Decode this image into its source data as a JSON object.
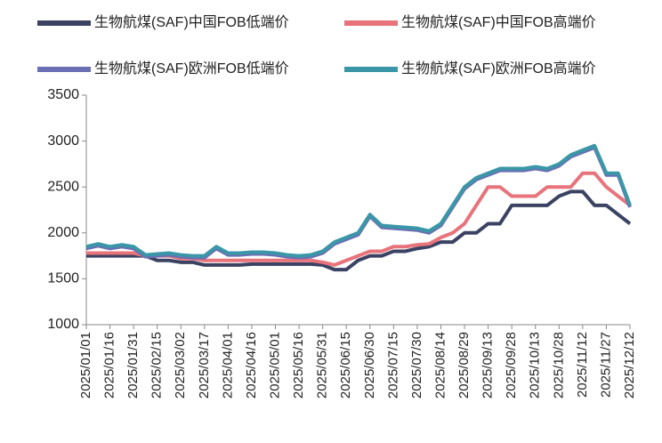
{
  "chart_data": {
    "type": "line",
    "categories": [
      "2025/01/01",
      null,
      "2025/01/16",
      null,
      "2025/01/31",
      null,
      "2025/02/15",
      null,
      "2025/03/02",
      null,
      "2025/03/17",
      null,
      "2025/04/01",
      null,
      "2025/04/16",
      null,
      "2025/05/01",
      null,
      "2025/05/16",
      null,
      "2025/05/31",
      null,
      "2025/06/15",
      null,
      "2025/06/30",
      null,
      "2025/07/15",
      null,
      "2025/07/30",
      null,
      "2025/08/14",
      null,
      "2025/08/29",
      null,
      "2025/09/13",
      null,
      "2025/09/28",
      null,
      "2025/10/13",
      null,
      "2025/10/28",
      null,
      "2025/11/12",
      null,
      "2025/11/27",
      null,
      "2025/12/12"
    ],
    "series": [
      {
        "name": "生物航煤(SAF)中国FOB低端价",
        "color": "#3b4262",
        "values": [
          1750,
          1750,
          1750,
          1750,
          1750,
          1750,
          1700,
          1700,
          1680,
          1680,
          1650,
          1650,
          1650,
          1650,
          1660,
          1660,
          1660,
          1660,
          1660,
          1660,
          1650,
          1600,
          1600,
          1700,
          1750,
          1750,
          1800,
          1800,
          1830,
          1850,
          1900,
          1900,
          2000,
          2000,
          2100,
          2100,
          2300,
          2300,
          2300,
          2300,
          2400,
          2450,
          2450,
          2300,
          2300,
          2200,
          2100
        ]
      },
      {
        "name": "生物航煤(SAF)中国FOB高端价",
        "color": "#e8737b",
        "values": [
          1780,
          1780,
          1780,
          1780,
          1780,
          1750,
          1750,
          1750,
          1720,
          1720,
          1700,
          1700,
          1700,
          1700,
          1700,
          1700,
          1700,
          1700,
          1700,
          1700,
          1680,
          1650,
          1700,
          1750,
          1800,
          1800,
          1850,
          1850,
          1870,
          1880,
          1950,
          2000,
          2100,
          2300,
          2500,
          2500,
          2400,
          2400,
          2400,
          2500,
          2500,
          2500,
          2650,
          2650,
          2500,
          2400,
          2300
        ]
      },
      {
        "name": "生物航煤(SAF)欧洲FOB低端价",
        "color": "#6b6fb3",
        "values": [
          1830,
          1860,
          1830,
          1850,
          1830,
          1740,
          1750,
          1760,
          1740,
          1730,
          1730,
          1830,
          1760,
          1760,
          1770,
          1770,
          1760,
          1740,
          1730,
          1740,
          1780,
          1880,
          1930,
          1980,
          2180,
          2060,
          2050,
          2040,
          2030,
          2000,
          2080,
          2280,
          2480,
          2580,
          2630,
          2680,
          2680,
          2680,
          2700,
          2680,
          2730,
          2830,
          2880,
          2930,
          2630,
          2630,
          2280
        ]
      },
      {
        "name": "生物航煤(SAF)欧洲FOB高端价",
        "color": "#3a97a8",
        "values": [
          1850,
          1880,
          1850,
          1870,
          1850,
          1760,
          1770,
          1780,
          1760,
          1750,
          1750,
          1850,
          1780,
          1780,
          1790,
          1790,
          1780,
          1760,
          1750,
          1760,
          1800,
          1900,
          1950,
          2000,
          2200,
          2080,
          2070,
          2060,
          2050,
          2020,
          2100,
          2300,
          2500,
          2600,
          2650,
          2700,
          2700,
          2700,
          2720,
          2700,
          2750,
          2850,
          2900,
          2950,
          2650,
          2650,
          2300
        ]
      }
    ],
    "ylim": [
      1000,
      3500
    ],
    "yticks": [
      1000,
      1500,
      2000,
      2500,
      3000,
      3500
    ],
    "grid": false
  }
}
